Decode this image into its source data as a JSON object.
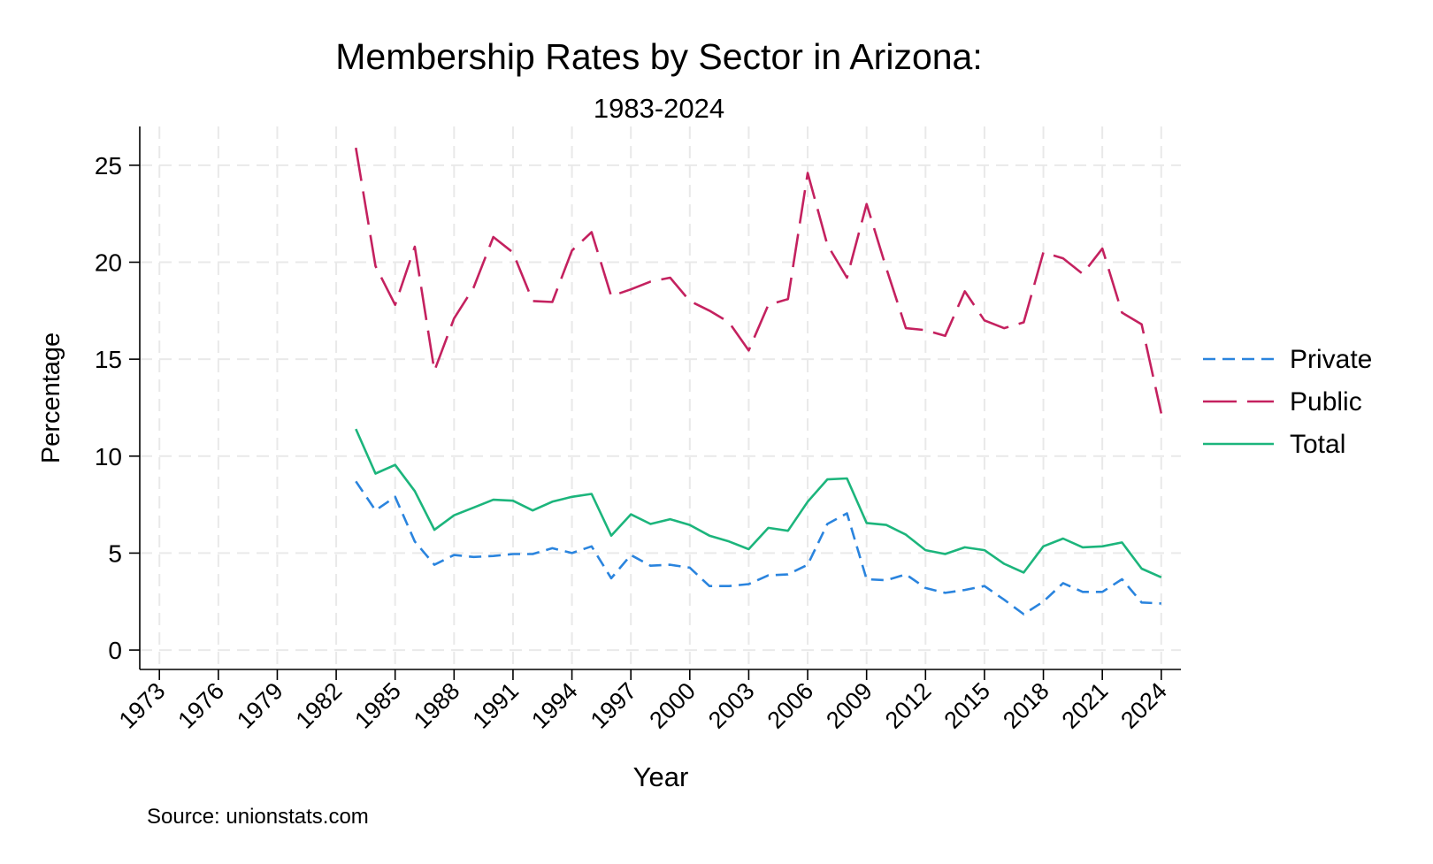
{
  "chart_data": {
    "type": "line",
    "title": "Membership Rates by Sector in Arizona:",
    "subtitle": "1983-2024",
    "xlabel": "Year",
    "ylabel": "Percentage",
    "source": "Source: unionstats.com",
    "xlim": [
      1972,
      2025
    ],
    "ylim": [
      -1,
      27
    ],
    "x_ticks": [
      1973,
      1976,
      1979,
      1982,
      1985,
      1988,
      1991,
      1994,
      1997,
      2000,
      2003,
      2006,
      2009,
      2012,
      2015,
      2018,
      2021,
      2024
    ],
    "y_ticks": [
      0,
      5,
      10,
      15,
      20,
      25
    ],
    "grid": true,
    "legend_position": "right",
    "x": [
      1983,
      1984,
      1985,
      1986,
      1987,
      1988,
      1989,
      1990,
      1991,
      1992,
      1993,
      1994,
      1995,
      1996,
      1997,
      1998,
      1999,
      2000,
      2001,
      2002,
      2003,
      2004,
      2005,
      2006,
      2007,
      2008,
      2009,
      2010,
      2011,
      2012,
      2013,
      2014,
      2015,
      2016,
      2017,
      2018,
      2019,
      2020,
      2021,
      2022,
      2023,
      2024
    ],
    "series": [
      {
        "name": "Private",
        "color": "#2a84de",
        "dash": "short",
        "values": [
          8.7,
          7.2,
          7.9,
          5.6,
          4.4,
          4.9,
          4.8,
          4.85,
          4.95,
          4.95,
          5.25,
          5.0,
          5.35,
          3.7,
          4.9,
          4.35,
          4.4,
          4.25,
          3.3,
          3.3,
          3.4,
          3.85,
          3.9,
          4.4,
          6.5,
          7.05,
          3.65,
          3.6,
          3.9,
          3.2,
          2.95,
          3.1,
          3.3,
          2.6,
          1.85,
          2.5,
          3.45,
          3.0,
          3.0,
          3.65,
          2.45,
          2.4
        ]
      },
      {
        "name": "Public",
        "color": "#c4215f",
        "dash": "long",
        "values": [
          25.9,
          19.8,
          17.8,
          20.8,
          14.4,
          17.1,
          18.7,
          21.3,
          20.5,
          18.0,
          17.95,
          20.6,
          21.55,
          18.25,
          18.6,
          19.0,
          19.2,
          18.0,
          17.5,
          16.9,
          15.45,
          17.8,
          18.1,
          24.6,
          20.9,
          19.2,
          23.0,
          19.7,
          16.6,
          16.5,
          16.2,
          18.5,
          17.0,
          16.6,
          16.9,
          20.5,
          20.2,
          19.4,
          20.7,
          17.4,
          16.8,
          12.2
        ]
      },
      {
        "name": "Total",
        "color": "#1cb57c",
        "dash": "solid",
        "values": [
          11.4,
          9.1,
          9.55,
          8.2,
          6.2,
          6.95,
          7.35,
          7.75,
          7.7,
          7.2,
          7.65,
          7.9,
          8.05,
          5.9,
          7.0,
          6.5,
          6.75,
          6.45,
          5.9,
          5.6,
          5.2,
          6.3,
          6.15,
          7.65,
          8.8,
          8.85,
          6.55,
          6.45,
          5.95,
          5.15,
          4.95,
          5.3,
          5.15,
          4.45,
          4.0,
          5.35,
          5.75,
          5.3,
          5.35,
          5.55,
          4.2,
          3.75
        ]
      }
    ]
  }
}
